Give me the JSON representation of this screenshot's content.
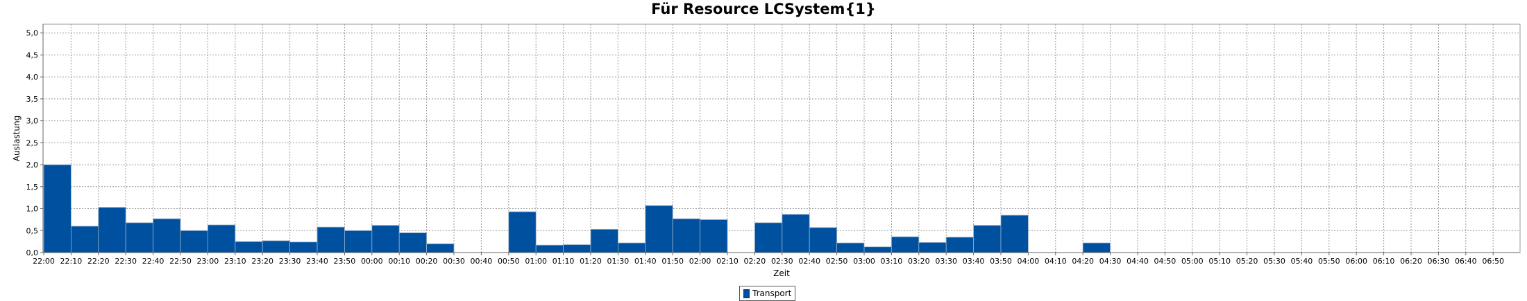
{
  "chart_data": {
    "type": "bar",
    "title": "Für Resource LCSystem{1}",
    "xlabel": "Zeit",
    "ylabel": "Auslastung",
    "ylim": [
      0,
      5.2
    ],
    "y_ticks": [
      "0,0",
      "0,5",
      "1,0",
      "1,5",
      "2,0",
      "2,5",
      "3,0",
      "3,5",
      "4,0",
      "4,5",
      "5,0"
    ],
    "x_tick_labels": [
      "22:00",
      "22:10",
      "22:20",
      "22:30",
      "22:40",
      "22:50",
      "23:00",
      "23:10",
      "23:20",
      "23:30",
      "23:40",
      "23:50",
      "00:00",
      "00:10",
      "00:20",
      "00:30",
      "00:40",
      "00:50",
      "01:00",
      "01:10",
      "01:20",
      "01:30",
      "01:40",
      "01:50",
      "02:00",
      "02:10",
      "02:20",
      "02:30",
      "02:40",
      "02:50",
      "03:00",
      "03:10",
      "03:20",
      "03:30",
      "03:40",
      "03:50",
      "04:00",
      "04:10",
      "04:20",
      "04:30",
      "04:40",
      "04:50",
      "05:00",
      "05:10",
      "05:20",
      "05:30",
      "05:40",
      "05:50",
      "06:00",
      "06:10",
      "06:20",
      "06:30",
      "06:40",
      "06:50"
    ],
    "series": [
      {
        "name": "Transport",
        "color": "#0050a0",
        "values": [
          2.0,
          0.6,
          1.03,
          0.68,
          0.77,
          0.5,
          0.63,
          0.25,
          0.27,
          0.24,
          0.58,
          0.5,
          0.62,
          0.45,
          0.2,
          0,
          0,
          0.93,
          0.17,
          0.18,
          0.53,
          0.22,
          1.07,
          0.77,
          0.75,
          0,
          0.68,
          0.87,
          0.57,
          0.22,
          0.13,
          0.36,
          0.23,
          0.35,
          0.62,
          0.85,
          0,
          0,
          0.22,
          0,
          0,
          0,
          0,
          0,
          0,
          0,
          0,
          0,
          0,
          0,
          0,
          0,
          0,
          0
        ]
      }
    ],
    "grid": true,
    "legend_position": "bottom-center"
  }
}
